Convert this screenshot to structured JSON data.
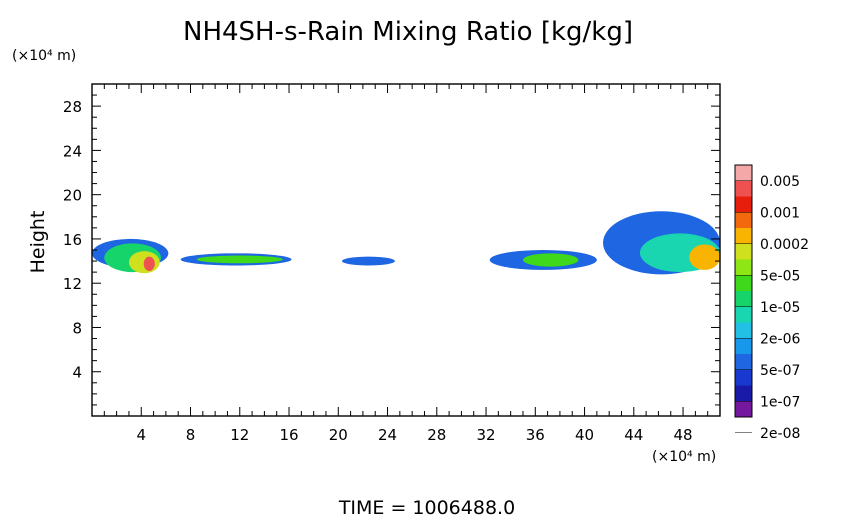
{
  "chart_data": {
    "type": "heatmap",
    "title": "NH4SH-s-Rain Mixing Ratio [kg/kg]",
    "ylabel": "Height",
    "y_unit": "(×10⁴ m)",
    "x_unit": "(×10⁴ m)",
    "time_label": "TIME  =  1006488.0",
    "xlim": [
      0,
      51
    ],
    "ylim": [
      0,
      30
    ],
    "x_ticks": [
      4,
      8,
      12,
      16,
      20,
      24,
      28,
      32,
      36,
      40,
      44,
      48
    ],
    "y_ticks": [
      4,
      8,
      12,
      16,
      20,
      24,
      28
    ],
    "legend_labels": [
      "0.005",
      "0.001",
      "0.0002",
      "5e-05",
      "1e-05",
      "2e-06",
      "5e-07",
      "1e-07",
      "2e-08"
    ],
    "colorbar_colors": [
      "#f4a8a8",
      "#ef5050",
      "#e81e0c",
      "#f36a0e",
      "#f8b400",
      "#cfe01e",
      "#8ee614",
      "#3fd81a",
      "#17d46a",
      "#1ad6b0",
      "#22c0e4",
      "#1898ea",
      "#1e66e2",
      "#1838d0",
      "#1a1aa8",
      "#7418a0"
    ],
    "regions": [
      {
        "x": [
          0.0,
          6.2
        ],
        "y": [
          13.4,
          16.0
        ],
        "level": 3
      },
      {
        "x": [
          1.0,
          5.6
        ],
        "y": [
          13.0,
          15.6
        ],
        "level": 7
      },
      {
        "x": [
          3.0,
          5.5
        ],
        "y": [
          12.9,
          14.9
        ],
        "level": 10
      },
      {
        "x": [
          4.2,
          5.1
        ],
        "y": [
          13.1,
          14.4
        ],
        "level": 14
      },
      {
        "x": [
          7.2,
          16.2
        ],
        "y": [
          13.6,
          14.7
        ],
        "level": 3
      },
      {
        "x": [
          8.5,
          15.5
        ],
        "y": [
          13.8,
          14.5
        ],
        "level": 8
      },
      {
        "x": [
          20.3,
          24.6
        ],
        "y": [
          13.6,
          14.4
        ],
        "level": 3
      },
      {
        "x": [
          32.3,
          41.0
        ],
        "y": [
          13.2,
          15.0
        ],
        "level": 3
      },
      {
        "x": [
          35.0,
          39.5
        ],
        "y": [
          13.5,
          14.7
        ],
        "level": 8
      },
      {
        "x": [
          41.5,
          51.0
        ],
        "y": [
          12.8,
          18.5
        ],
        "level": 3
      },
      {
        "x": [
          44.5,
          51.0
        ],
        "y": [
          13.0,
          16.5
        ],
        "level": 6
      },
      {
        "x": [
          48.5,
          51.0
        ],
        "y": [
          13.2,
          15.5
        ],
        "level": 11
      }
    ]
  }
}
